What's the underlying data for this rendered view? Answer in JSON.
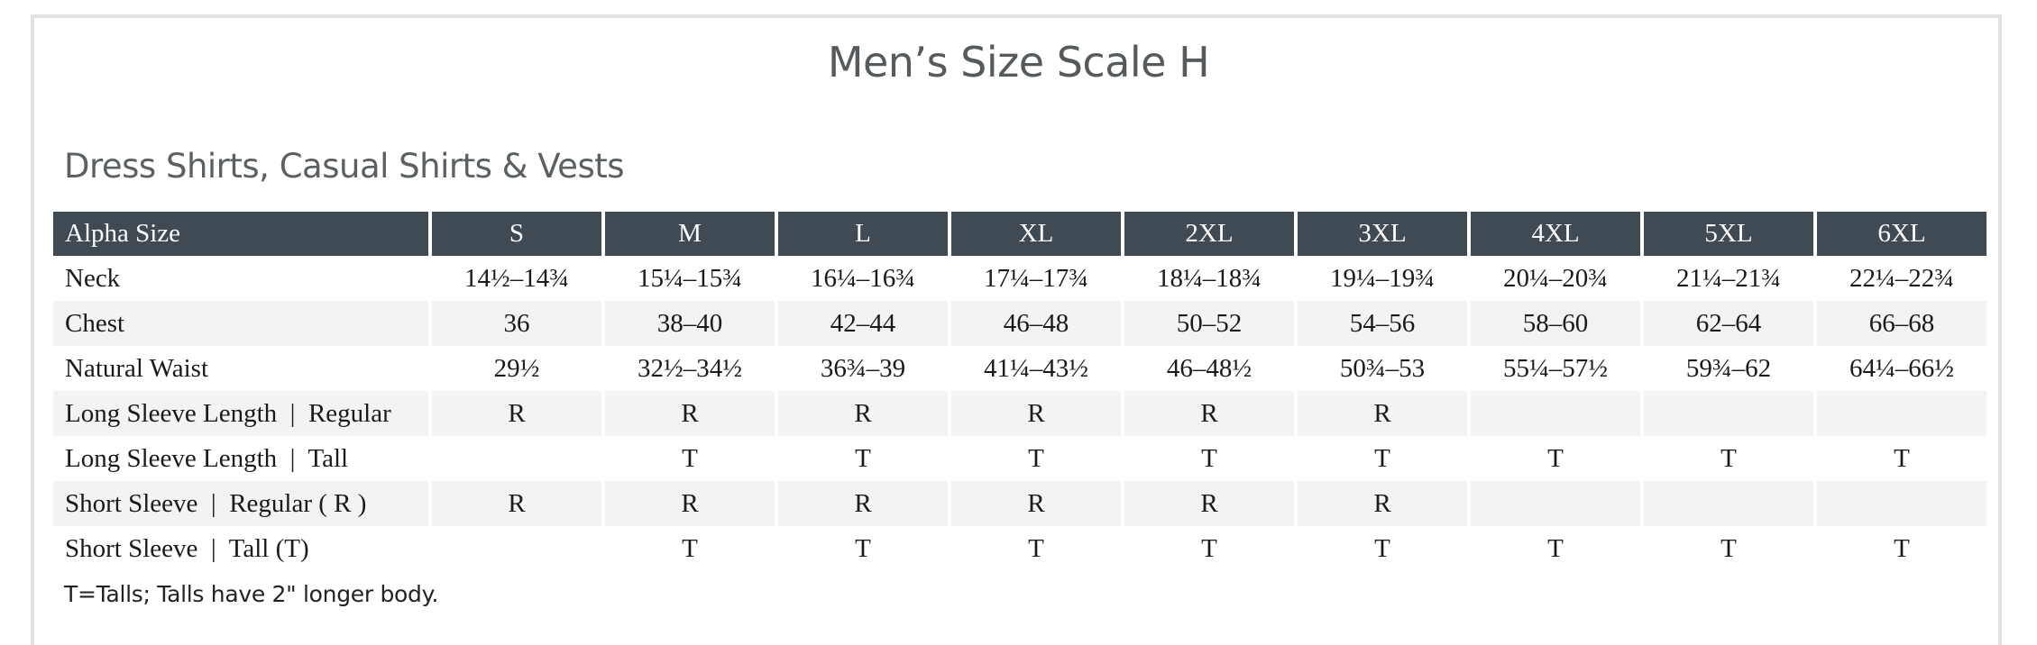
{
  "title": "Men’s Size Scale H",
  "subtitle": "Dress Shirts, Casual Shirts & Vests",
  "table": {
    "headers": [
      "Alpha Size",
      "S",
      "M",
      "L",
      "XL",
      "2XL",
      "3XL",
      "4XL",
      "5XL",
      "6XL"
    ],
    "rows": [
      {
        "label": "Neck",
        "cells": [
          "14½–14¾",
          "15¼–15¾",
          "16¼–16¾",
          "17¼–17¾",
          "18¼–18¾",
          "19¼–19¾",
          "20¼–20¾",
          "21¼–21¾",
          "22¼–22¾"
        ]
      },
      {
        "label": "Chest",
        "cells": [
          "36",
          "38–40",
          "42–44",
          "46–48",
          "50–52",
          "54–56",
          "58–60",
          "62–64",
          "66–68"
        ]
      },
      {
        "label": "Natural Waist",
        "cells": [
          "29½",
          "32½–34½",
          "36¾–39",
          "41¼–43½",
          "46–48½",
          "50¾–53",
          "55¼–57½",
          "59¾–62",
          "64¼–66½"
        ]
      },
      {
        "label": "Long Sleeve Length  |  Regular",
        "cells": [
          "R",
          "R",
          "R",
          "R",
          "R",
          "R",
          "",
          "",
          ""
        ]
      },
      {
        "label": "Long Sleeve Length  |  Tall",
        "cells": [
          "",
          "T",
          "T",
          "T",
          "T",
          "T",
          "T",
          "T",
          "T"
        ]
      },
      {
        "label": "Short Sleeve  |  Regular ( R )",
        "cells": [
          "R",
          "R",
          "R",
          "R",
          "R",
          "R",
          "",
          "",
          ""
        ]
      },
      {
        "label": "Short Sleeve  |  Tall (T)",
        "cells": [
          "",
          "T",
          "T",
          "T",
          "T",
          "T",
          "T",
          "T",
          "T"
        ]
      }
    ]
  },
  "footnote": "T=Talls; Talls have 2\" longer body.",
  "colors": {
    "header_background": "#3f4a53",
    "header_text": "#ffffff",
    "stripe_background": "#f3f3f2",
    "frame_border": "#e2e2e2"
  }
}
